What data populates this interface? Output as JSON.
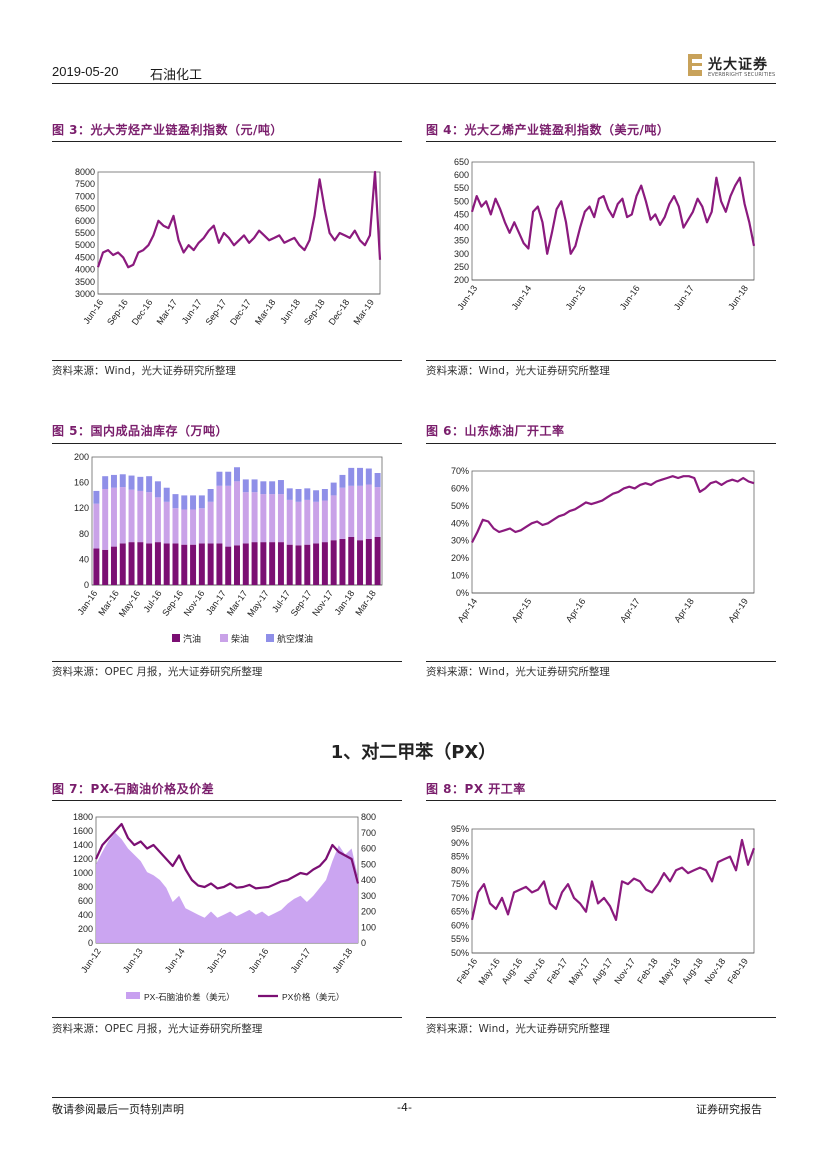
{
  "header": {
    "date": "2019-05-20",
    "sector": "石油化工",
    "logo_cn": "光大证券",
    "logo_en": "EVERBRIGHT SECURITIES"
  },
  "section_title": "1、对二甲苯（PX）",
  "footer": {
    "left": "敬请参阅最后一页特别声明",
    "center": "-4-",
    "right": "证券研究报告"
  },
  "figures": [
    {
      "title": "图 3：光大芳烃产业链盈利指数（元/吨）",
      "source": "资料来源：Wind，光大证券研究所整理",
      "chart_data": {
        "type": "line",
        "color": "#8b1a7e",
        "yticks": [
          "8000",
          "7500",
          "7000",
          "6500",
          "6000",
          "5500",
          "5000",
          "4500",
          "4000",
          "3500",
          "3000"
        ],
        "ylim": [
          3000,
          8000
        ],
        "xticks": [
          "Jun-16",
          "Sep-16",
          "Dec-16",
          "Mar-17",
          "Jun-17",
          "Sep-17",
          "Dec-17",
          "Mar-18",
          "Jun-18",
          "Sep-18",
          "Dec-18",
          "Mar-19"
        ],
        "values": [
          4100,
          4700,
          4800,
          4600,
          4700,
          4500,
          4100,
          4200,
          4700,
          4800,
          5000,
          5400,
          6000,
          5800,
          5700,
          6200,
          5200,
          4700,
          5000,
          4800,
          5100,
          5300,
          5600,
          5800,
          5100,
          5500,
          5300,
          5000,
          5200,
          5400,
          5100,
          5300,
          5600,
          5400,
          5200,
          5300,
          5400,
          5100,
          5200,
          5300,
          5000,
          4800,
          5200,
          6200,
          7700,
          6500,
          5500,
          5200,
          5500,
          5400,
          5300,
          5600,
          5200,
          5000,
          5400,
          8000,
          4400
        ]
      }
    },
    {
      "title": "图 4：光大乙烯产业链盈利指数（美元/吨）",
      "source": "资料来源：Wind，光大证券研究所整理",
      "chart_data": {
        "type": "line",
        "color": "#8b1a7e",
        "yticks": [
          "650",
          "600",
          "550",
          "500",
          "450",
          "400",
          "350",
          "300",
          "250",
          "200"
        ],
        "ylim": [
          200,
          650
        ],
        "xticks": [
          "Jun-13",
          "Jun-14",
          "Jun-15",
          "Jun-16",
          "Jun-17",
          "Jun-18"
        ],
        "values": [
          460,
          520,
          480,
          500,
          450,
          510,
          470,
          420,
          380,
          420,
          380,
          340,
          320,
          460,
          480,
          420,
          300,
          380,
          470,
          500,
          420,
          300,
          330,
          400,
          460,
          480,
          440,
          510,
          520,
          470,
          440,
          490,
          510,
          440,
          450,
          520,
          560,
          500,
          430,
          450,
          410,
          440,
          490,
          520,
          480,
          400,
          430,
          460,
          510,
          480,
          420,
          460,
          590,
          500,
          460,
          520,
          560,
          590,
          490,
          420,
          330
        ]
      }
    },
    {
      "title": "图 5：国内成品油库存（万吨）",
      "source": "资料来源：OPEC 月报，光大证券研究所整理",
      "chart_data": {
        "type": "bar",
        "stacked": true,
        "yticks": [
          "200",
          "160",
          "120",
          "80",
          "40",
          "0"
        ],
        "ylim": [
          0,
          200
        ],
        "xticks": [
          "Jan-16",
          "Mar-16",
          "May-16",
          "Jul-16",
          "Sep-16",
          "Nov-16",
          "Jan-17",
          "Mar-17",
          "May-17",
          "Jul-17",
          "Sep-17",
          "Nov-17",
          "Jan-18",
          "Mar-18"
        ],
        "series": [
          {
            "name": "汽油",
            "color": "#7b0f73",
            "values": [
              57,
              55,
              60,
              65,
              67,
              67,
              65,
              67,
              65,
              65,
              63,
              63,
              65,
              65,
              65,
              60,
              62,
              65,
              67,
              67,
              67,
              67,
              63,
              62,
              63,
              65,
              67,
              70,
              72,
              75,
              70,
              72,
              75
            ]
          },
          {
            "name": "柴油",
            "color": "#c9a2e8",
            "values": [
              70,
              95,
              92,
              88,
              82,
              80,
              80,
              70,
              65,
              55,
              55,
              55,
              55,
              65,
              90,
              95,
              100,
              80,
              78,
              75,
              75,
              75,
              70,
              68,
              70,
              65,
              65,
              70,
              80,
              80,
              85,
              85,
              78
            ]
          },
          {
            "name": "航空煤油",
            "color": "#8f8fe8",
            "values": [
              20,
              20,
              20,
              20,
              22,
              22,
              25,
              25,
              22,
              22,
              22,
              22,
              20,
              20,
              22,
              22,
              22,
              20,
              20,
              20,
              20,
              22,
              18,
              20,
              18,
              18,
              18,
              20,
              20,
              28,
              28,
              25,
              22
            ]
          }
        ],
        "legend": [
          "汽油",
          "柴油",
          "航空煤油"
        ]
      }
    },
    {
      "title": "图 6：山东炼油厂开工率",
      "source": "资料来源：Wind，光大证券研究所整理",
      "chart_data": {
        "type": "line",
        "color": "#8b1a7e",
        "yticks": [
          "70%",
          "60%",
          "50%",
          "40%",
          "30%",
          "20%",
          "10%",
          "0%"
        ],
        "ylim": [
          0,
          70
        ],
        "xticks": [
          "Apr-14",
          "Apr-15",
          "Apr-16",
          "Apr-17",
          "Apr-18",
          "Apr-19"
        ],
        "values": [
          29,
          35,
          42,
          41,
          37,
          35,
          36,
          37,
          35,
          36,
          38,
          40,
          41,
          39,
          40,
          42,
          44,
          45,
          47,
          48,
          50,
          52,
          51,
          52,
          53,
          55,
          57,
          58,
          60,
          61,
          60,
          62,
          63,
          62,
          64,
          65,
          66,
          67,
          66,
          67,
          67,
          66,
          58,
          60,
          63,
          64,
          62,
          64,
          65,
          64,
          66,
          64,
          63
        ]
      }
    },
    {
      "title": "图 7：PX-石脑油价格及价差",
      "source": "资料来源：OPEC 月报，光大证券研究所整理",
      "chart_data": {
        "type": "area",
        "yticks_left": [
          "1800",
          "1600",
          "1400",
          "1200",
          "1000",
          "800",
          "600",
          "400",
          "200",
          "0"
        ],
        "ylim_left": [
          0,
          1800
        ],
        "yticks_right": [
          "800",
          "700",
          "600",
          "500",
          "400",
          "300",
          "200",
          "100",
          "0"
        ],
        "ylim_right": [
          0,
          800
        ],
        "xticks": [
          "Jun-12",
          "Jun-13",
          "Jun-14",
          "Jun-15",
          "Jun-16",
          "Jun-17",
          "Jun-18"
        ],
        "series": [
          {
            "name": "PX-石脑油价差（美元）",
            "color": "#c8a0f0",
            "axis": "right",
            "values": [
              500,
              580,
              650,
              700,
              660,
              600,
              560,
              520,
              450,
              430,
              400,
              350,
              260,
              300,
              220,
              200,
              180,
              160,
              200,
              160,
              180,
              200,
              170,
              190,
              210,
              180,
              200,
              170,
              190,
              210,
              250,
              280,
              300,
              260,
              300,
              350,
              400,
              520,
              620,
              560,
              600,
              420
            ]
          },
          {
            "name": "PX价格（美元）",
            "color": "#7b0f73",
            "axis": "left",
            "values": [
              1200,
              1400,
              1500,
              1600,
              1700,
              1500,
              1400,
              1450,
              1350,
              1400,
              1300,
              1200,
              1100,
              1250,
              1050,
              900,
              820,
              800,
              850,
              780,
              800,
              850,
              790,
              800,
              830,
              780,
              790,
              800,
              840,
              880,
              900,
              950,
              1000,
              980,
              1050,
              1100,
              1200,
              1400,
              1300,
              1250,
              1200,
              850
            ]
          }
        ],
        "legend": [
          "PX-石脑油价差（美元）",
          "PX价格（美元）"
        ]
      }
    },
    {
      "title": "图 8：PX 开工率",
      "source": "资料来源：Wind，光大证券研究所整理",
      "chart_data": {
        "type": "line",
        "color": "#8b1a7e",
        "yticks": [
          "95%",
          "90%",
          "85%",
          "80%",
          "75%",
          "70%",
          "65%",
          "60%",
          "55%",
          "50%"
        ],
        "ylim": [
          50,
          95
        ],
        "xticks": [
          "Feb-16",
          "May-16",
          "Aug-16",
          "Nov-16",
          "Feb-17",
          "May-17",
          "Aug-17",
          "Nov-17",
          "Feb-18",
          "May-18",
          "Aug-18",
          "Nov-18",
          "Feb-19"
        ],
        "values": [
          62,
          72,
          75,
          68,
          66,
          70,
          64,
          72,
          73,
          74,
          72,
          73,
          76,
          68,
          66,
          72,
          75,
          70,
          68,
          65,
          76,
          68,
          70,
          67,
          62,
          76,
          75,
          77,
          76,
          73,
          72,
          75,
          79,
          76,
          80,
          81,
          79,
          80,
          81,
          80,
          76,
          83,
          84,
          85,
          80,
          91,
          82,
          88
        ]
      }
    }
  ]
}
